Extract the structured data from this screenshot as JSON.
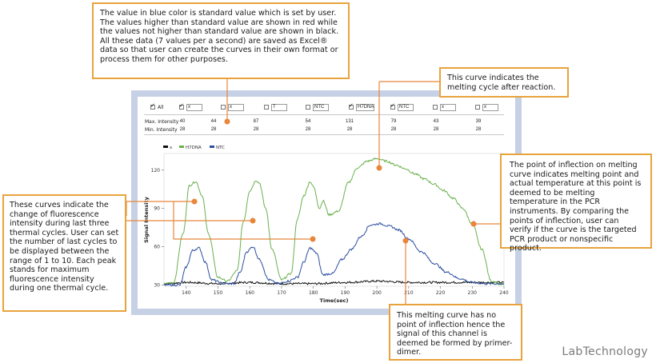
{
  "checkboxes": [
    {
      "label": "All",
      "checked": true
    },
    {
      "label": "x",
      "checked": true
    },
    {
      "label": "x",
      "checked": false
    },
    {
      "label": "T",
      "checked": false
    },
    {
      "label": "NTC",
      "checked": false
    },
    {
      "label": "H7DNA",
      "checked": true
    },
    {
      "label": "NTC",
      "checked": true
    },
    {
      "label": "x",
      "checked": false
    },
    {
      "label": "x",
      "checked": false
    }
  ],
  "table": {
    "max_label": "Max. Intensity",
    "min_label": "Min. Intensity",
    "max_values": [
      "40",
      "44",
      "87",
      "54",
      "131",
      "79",
      "43",
      "39"
    ],
    "min_values": [
      "28",
      "28",
      "28",
      "28",
      "28",
      "28",
      "28",
      "28"
    ]
  },
  "callouts": {
    "top": "The value in blue color is standard value which is set by user. The values higher than standard value are shown in red while the values not higher than standard value are shown in black. All these data (7 values per a second) are saved as Excel® data so that user can create the curves in their own format or process them for other purposes.",
    "melting": "This curve indicates the melting cycle after reaction.",
    "inflection": "The point of inflection on melting curve indicates melting point and actual temperature at this point is deemed to be melting temperature in the PCR instruments. By comparing the points of inflection, user can verify if the curve is the targeted PCR product or nonspecific product.",
    "cycles": "These curves indicate the change of fluorescence intensity during last three thermal cycles. User can set the number of last cycles to be displayed between the range of 1 to 10. Each peak stands for maximum fluorescence intensity during one thermal cycle.",
    "no_inflection": "This melting curve has no point of inflection hence the signal of this channel is deemed be formed by primer-dimer."
  },
  "chart_data": {
    "type": "line",
    "xlabel": "Time(sec)",
    "ylabel": "Signal Intensity",
    "xlim": [
      133,
      240
    ],
    "ylim": [
      29,
      133
    ],
    "x_ticks": [
      140,
      150,
      160,
      170,
      180,
      190,
      200,
      210,
      220,
      230,
      240
    ],
    "y_ticks": [
      30,
      60,
      90,
      120
    ],
    "legend": [
      "x",
      "H7DNA",
      "NTC"
    ],
    "series": [
      {
        "name": "x",
        "color": "#111111",
        "x": [
          133,
          140,
          150,
          160,
          170,
          180,
          190,
          200,
          210,
          220,
          230,
          240
        ],
        "y": [
          31,
          32,
          31,
          32,
          31,
          31,
          32,
          33,
          32,
          32,
          32,
          32
        ]
      },
      {
        "name": "H7DNA",
        "color": "#6ab04c",
        "x": [
          133,
          136,
          139,
          141,
          143,
          145,
          147,
          150,
          153,
          156,
          158,
          160,
          162,
          163,
          165,
          167,
          170,
          173,
          175,
          177,
          179,
          180,
          182,
          183,
          185,
          188,
          191,
          194,
          197,
          200,
          203,
          206,
          209,
          212,
          215,
          218,
          221,
          224,
          227,
          230,
          233,
          236,
          240
        ],
        "y": [
          31,
          32,
          70,
          108,
          111,
          100,
          70,
          36,
          33,
          41,
          80,
          104,
          112,
          110,
          90,
          58,
          34,
          39,
          82,
          100,
          111,
          107,
          90,
          96,
          85,
          88,
          110,
          122,
          127,
          129,
          127,
          124,
          121,
          117,
          113,
          109,
          104,
          98,
          90,
          78,
          58,
          33,
          30
        ]
      },
      {
        "name": "NTC",
        "color": "#2c4f9e",
        "x": [
          133,
          138,
          140,
          142,
          144,
          146,
          148,
          152,
          155,
          157,
          159,
          161,
          163,
          166,
          169,
          172,
          175,
          177,
          179,
          181,
          183,
          186,
          189,
          192,
          195,
          198,
          201,
          204,
          207,
          210,
          214,
          218,
          222,
          226,
          230,
          234,
          240
        ],
        "y": [
          30,
          30,
          44,
          57,
          59,
          48,
          34,
          31,
          31,
          40,
          56,
          60,
          50,
          34,
          31,
          33,
          36,
          48,
          59,
          55,
          38,
          39,
          50,
          58,
          68,
          77,
          78,
          76,
          73,
          66,
          56,
          47,
          40,
          35,
          32,
          31,
          31
        ]
      }
    ]
  },
  "brand": "LabTechnology"
}
